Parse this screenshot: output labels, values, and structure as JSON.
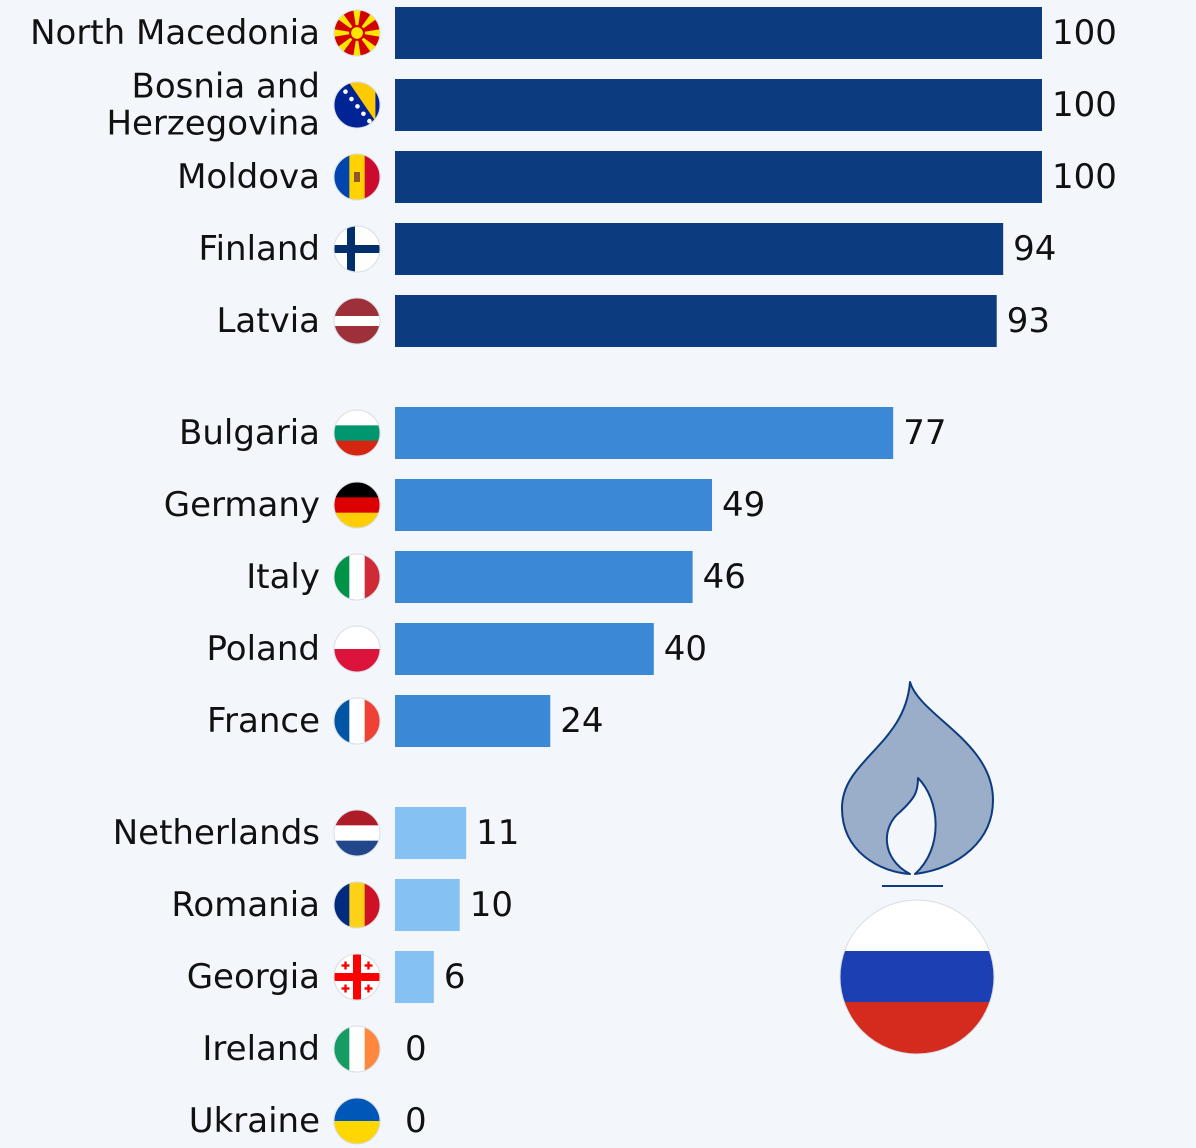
{
  "chart_data": {
    "type": "bar",
    "orientation": "horizontal",
    "categories": [
      "North Macedonia",
      "Bosnia and Herzegovina",
      "Moldova",
      "Finland",
      "Latvia",
      "Bulgaria",
      "Germany",
      "Italy",
      "Poland",
      "France",
      "Netherlands",
      "Romania",
      "Georgia",
      "Ireland",
      "Ukraine"
    ],
    "values": [
      100,
      100,
      100,
      94,
      93,
      77,
      49,
      46,
      40,
      24,
      11,
      10,
      6,
      0,
      0
    ],
    "xlim": [
      0,
      100
    ],
    "groups": [
      {
        "members": [
          "North Macedonia",
          "Bosnia and Herzegovina",
          "Moldova",
          "Finland",
          "Latvia"
        ],
        "color": "#0d3b80"
      },
      {
        "members": [
          "Bulgaria",
          "Germany",
          "Italy",
          "Poland",
          "France"
        ],
        "color": "#3a88d6"
      },
      {
        "members": [
          "Netherlands",
          "Romania",
          "Georgia",
          "Ireland",
          "Ukraine"
        ],
        "color": "#85c1f2"
      }
    ],
    "label_lines": {
      "Bosnia and Herzegovina": [
        "Bosnia and",
        "Herzegovina"
      ]
    },
    "flags": {
      "North Macedonia": "north-macedonia-flag",
      "Bosnia and Herzegovina": "bosnia-flag",
      "Moldova": "moldova-flag",
      "Finland": "finland-flag",
      "Latvia": "latvia-flag",
      "Bulgaria": "bulgaria-flag",
      "Germany": "germany-flag",
      "Italy": "italy-flag",
      "Poland": "poland-flag",
      "France": "france-flag",
      "Netherlands": "netherlands-flag",
      "Romania": "romania-flag",
      "Georgia": "georgia-flag",
      "Ireland": "ireland-flag",
      "Ukraine": "ukraine-flag"
    },
    "decorations": {
      "flame_icon": "gas-flame-icon",
      "russia_flag": "russia-flag"
    },
    "grid": false,
    "legend": "none"
  }
}
